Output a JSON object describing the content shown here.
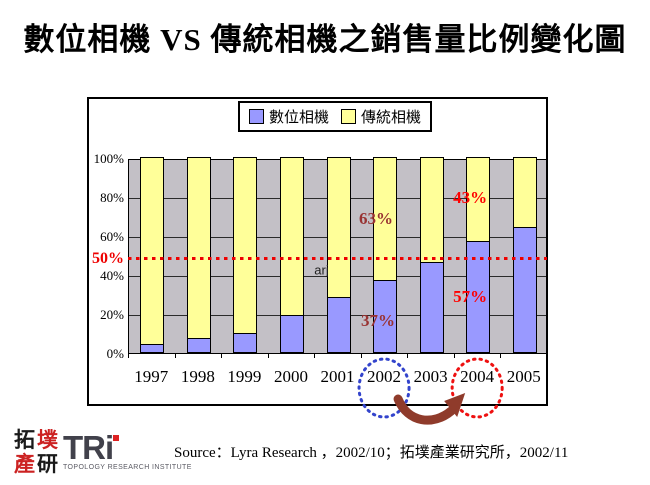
{
  "title": "數位相機 VS 傳統相機之銷售量比例變化圖",
  "chart_data": {
    "type": "bar",
    "stacked": true,
    "categories": [
      "1997",
      "1998",
      "1999",
      "2000",
      "2001",
      "2002",
      "2003",
      "2004",
      "2005"
    ],
    "series": [
      {
        "name": "數位相機",
        "color": "#9999FF",
        "values": [
          4,
          7,
          10,
          19,
          28,
          37,
          46,
          57,
          64
        ]
      },
      {
        "name": "傳統相機",
        "color": "#FFFF99",
        "values": [
          96,
          93,
          90,
          81,
          72,
          63,
          54,
          43,
          36
        ]
      }
    ],
    "ylim": [
      0,
      100
    ],
    "y_ticks": [
      "0%",
      "20%",
      "40%",
      "60%",
      "80%",
      "100%"
    ],
    "grid": "horizontal every 20%",
    "plot_background": "#C3C0C6",
    "legend_position": "top",
    "reference_line": {
      "value": 50,
      "label": "50%",
      "color": "#EE0000",
      "style": "dotted"
    },
    "annotations": [
      {
        "text": "63%",
        "color": "#993333",
        "category": "2002",
        "at_value": 69,
        "dx": -8,
        "emphasis": true
      },
      {
        "text": "37%",
        "color": "#993333",
        "category": "2002",
        "at_value": 17,
        "dx": -6,
        "emphasis": true
      },
      {
        "text": "43%",
        "color": "#FF0000",
        "category": "2004",
        "at_value": 80,
        "dx": -7,
        "emphasis": true
      },
      {
        "text": "57%",
        "color": "#FF0000",
        "category": "2004",
        "at_value": 29,
        "dx": -7,
        "emphasis": true
      },
      {
        "text": "arj",
        "color": "#222222",
        "category": "2001",
        "at_value": 43,
        "dx": -16,
        "emphasis": false
      }
    ],
    "decorations": [
      {
        "type": "ellipse",
        "category": "2002",
        "color": "#3344CC"
      },
      {
        "type": "ellipse",
        "category": "2004",
        "color": "#EE1111"
      },
      {
        "type": "arrow",
        "from": "2002",
        "to": "2004",
        "color": "#8F3B2B"
      }
    ]
  },
  "footer": {
    "source": "Source：Lyra Research ，2002/10；拓墣產業研究所，2002/11"
  },
  "logo": {
    "zh_chars": [
      {
        "char": "拓",
        "color": "#1a1a1a"
      },
      {
        "char": "墣",
        "color": "#CC2222"
      },
      {
        "char": "產",
        "color": "#CC2222"
      },
      {
        "char": "研",
        "color": "#1a1a1a"
      }
    ],
    "latin": "TRi",
    "caption": "TOPOLOGY RESEARCH INSTITUTE"
  }
}
